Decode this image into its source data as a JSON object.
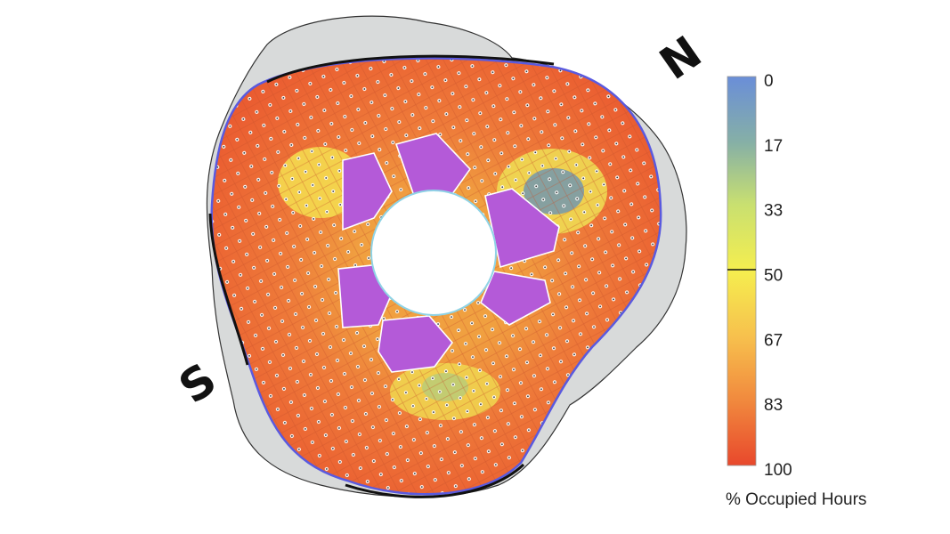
{
  "compass": {
    "north": "N",
    "south": "S"
  },
  "legend": {
    "title": "% Occupied Hours",
    "ticks": [
      "0",
      "17",
      "33",
      "50",
      "67",
      "83",
      "100"
    ],
    "marked_tick": "50",
    "colors": [
      "#6a8ed8",
      "#86b0a6",
      "#c9e070",
      "#f5ee4f",
      "#f7c04d",
      "#f18a3e",
      "#e8482c"
    ]
  },
  "plan": {
    "low_value_color": "#7a9aa8",
    "core_zone_color": "#b45ad8",
    "base_color": "#ec6a35",
    "site_outline_color": "#d7d9d9"
  }
}
